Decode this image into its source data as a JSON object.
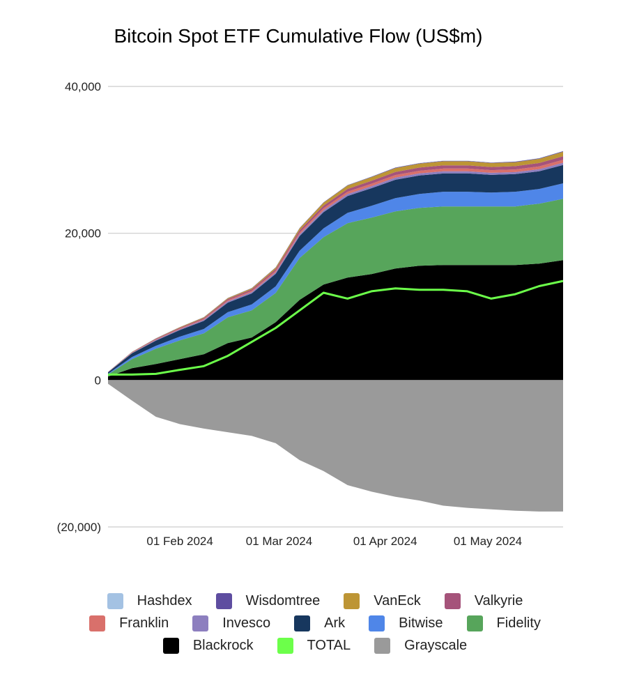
{
  "chart_data": {
    "type": "area",
    "stacked": true,
    "title": "Bitcoin Spot ETF Cumulative Flow (US$m)",
    "xlabel": "",
    "ylabel": "",
    "ylim": [
      -20000,
      40000
    ],
    "yticks": [
      40000,
      20000,
      0,
      -20000
    ],
    "ytick_labels": [
      "40,000",
      "20,000",
      "0",
      "(20,000)"
    ],
    "xlim": [
      "2024-01-11",
      "2024-05-23"
    ],
    "xticks": [
      "2024-02-01",
      "2024-03-01",
      "2024-04-01",
      "2024-05-01"
    ],
    "xtick_labels": [
      "01 Feb 2024",
      "01 Mar 2024",
      "01 Apr 2024",
      "01 May 2024"
    ],
    "grid": true,
    "legend_position": "bottom",
    "x": [
      "2024-01-11",
      "2024-01-18",
      "2024-01-25",
      "2024-02-01",
      "2024-02-08",
      "2024-02-15",
      "2024-02-22",
      "2024-02-29",
      "2024-03-07",
      "2024-03-14",
      "2024-03-21",
      "2024-03-28",
      "2024-04-04",
      "2024-04-11",
      "2024-04-18",
      "2024-04-25",
      "2024-05-02",
      "2024-05-09",
      "2024-05-16",
      "2024-05-23"
    ],
    "series": [
      {
        "name": "Blackrock",
        "color": "#000000",
        "values": [
          475,
          1615,
          2185,
          2850,
          3515,
          5035,
          5795,
          7885,
          10925,
          13015,
          13965,
          14440,
          15200,
          15580,
          15675,
          15675,
          15675,
          15675,
          15865,
          16340
        ]
      },
      {
        "name": "Fidelity",
        "color": "#57a55b",
        "values": [
          285,
          1235,
          2090,
          2565,
          2850,
          3515,
          3705,
          3990,
          5700,
          6460,
          7410,
          7695,
          7790,
          7885,
          7980,
          7980,
          7980,
          7980,
          8170,
          8360
        ]
      },
      {
        "name": "Bitwise",
        "color": "#4f86e8",
        "values": [
          100,
          300,
          400,
          500,
          600,
          700,
          800,
          900,
          1000,
          1200,
          1400,
          1600,
          1800,
          1900,
          2000,
          2000,
          1900,
          2000,
          2000,
          2100
        ]
      },
      {
        "name": "Ark",
        "color": "#17375e",
        "values": [
          200,
          500,
          700,
          900,
          1100,
          1300,
          1500,
          1700,
          2000,
          2200,
          2300,
          2400,
          2500,
          2500,
          2500,
          2500,
          2400,
          2400,
          2400,
          2500
        ]
      },
      {
        "name": "Invesco",
        "color": "#8d7fbf",
        "values": [
          20,
          60,
          90,
          110,
          140,
          170,
          190,
          210,
          240,
          260,
          270,
          280,
          290,
          290,
          290,
          290,
          280,
          280,
          290,
          300
        ]
      },
      {
        "name": "Franklin",
        "color": "#d9706b",
        "values": [
          10,
          40,
          70,
          90,
          110,
          140,
          160,
          190,
          230,
          280,
          310,
          330,
          350,
          360,
          370,
          370,
          360,
          360,
          380,
          400
        ]
      },
      {
        "name": "Valkyrie",
        "color": "#a5537a",
        "values": [
          20,
          60,
          90,
          120,
          150,
          180,
          210,
          250,
          300,
          350,
          380,
          400,
          420,
          430,
          440,
          440,
          430,
          440,
          460,
          500
        ]
      },
      {
        "name": "VanEck",
        "color": "#bd9535",
        "values": [
          10,
          30,
          50,
          70,
          90,
          120,
          150,
          200,
          280,
          400,
          470,
          500,
          530,
          540,
          550,
          550,
          540,
          550,
          570,
          600
        ]
      },
      {
        "name": "Wisdomtree",
        "color": "#5e4da0",
        "values": [
          5,
          10,
          15,
          20,
          25,
          30,
          35,
          40,
          45,
          50,
          55,
          60,
          65,
          65,
          65,
          65,
          65,
          70,
          75,
          80
        ]
      },
      {
        "name": "Hashdex",
        "color": "#a4c2e3",
        "values": [
          5,
          5,
          5,
          5,
          5,
          10,
          10,
          10,
          10,
          10,
          15,
          15,
          15,
          15,
          15,
          15,
          15,
          15,
          20,
          20
        ]
      },
      {
        "name": "Grayscale",
        "color": "#9a9a9a",
        "values": [
          -500,
          -2800,
          -5000,
          -6000,
          -6600,
          -7100,
          -7600,
          -8600,
          -10900,
          -12400,
          -14300,
          -15200,
          -15900,
          -16400,
          -17100,
          -17400,
          -17600,
          -17800,
          -17900,
          -17900
        ]
      },
      {
        "name": "TOTAL",
        "color": "#6cff4a",
        "type": "line",
        "values": [
          750,
          750,
          850,
          1400,
          1900,
          3300,
          5200,
          7100,
          9500,
          11900,
          11100,
          12100,
          12500,
          12300,
          12300,
          12100,
          11100,
          11700,
          12800,
          13500
        ]
      }
    ],
    "legend_order": [
      "Hashdex",
      "Wisdomtree",
      "VanEck",
      "Valkyrie",
      "Franklin",
      "Invesco",
      "Ark",
      "Bitwise",
      "Fidelity",
      "Blackrock",
      "TOTAL",
      "Grayscale"
    ]
  }
}
